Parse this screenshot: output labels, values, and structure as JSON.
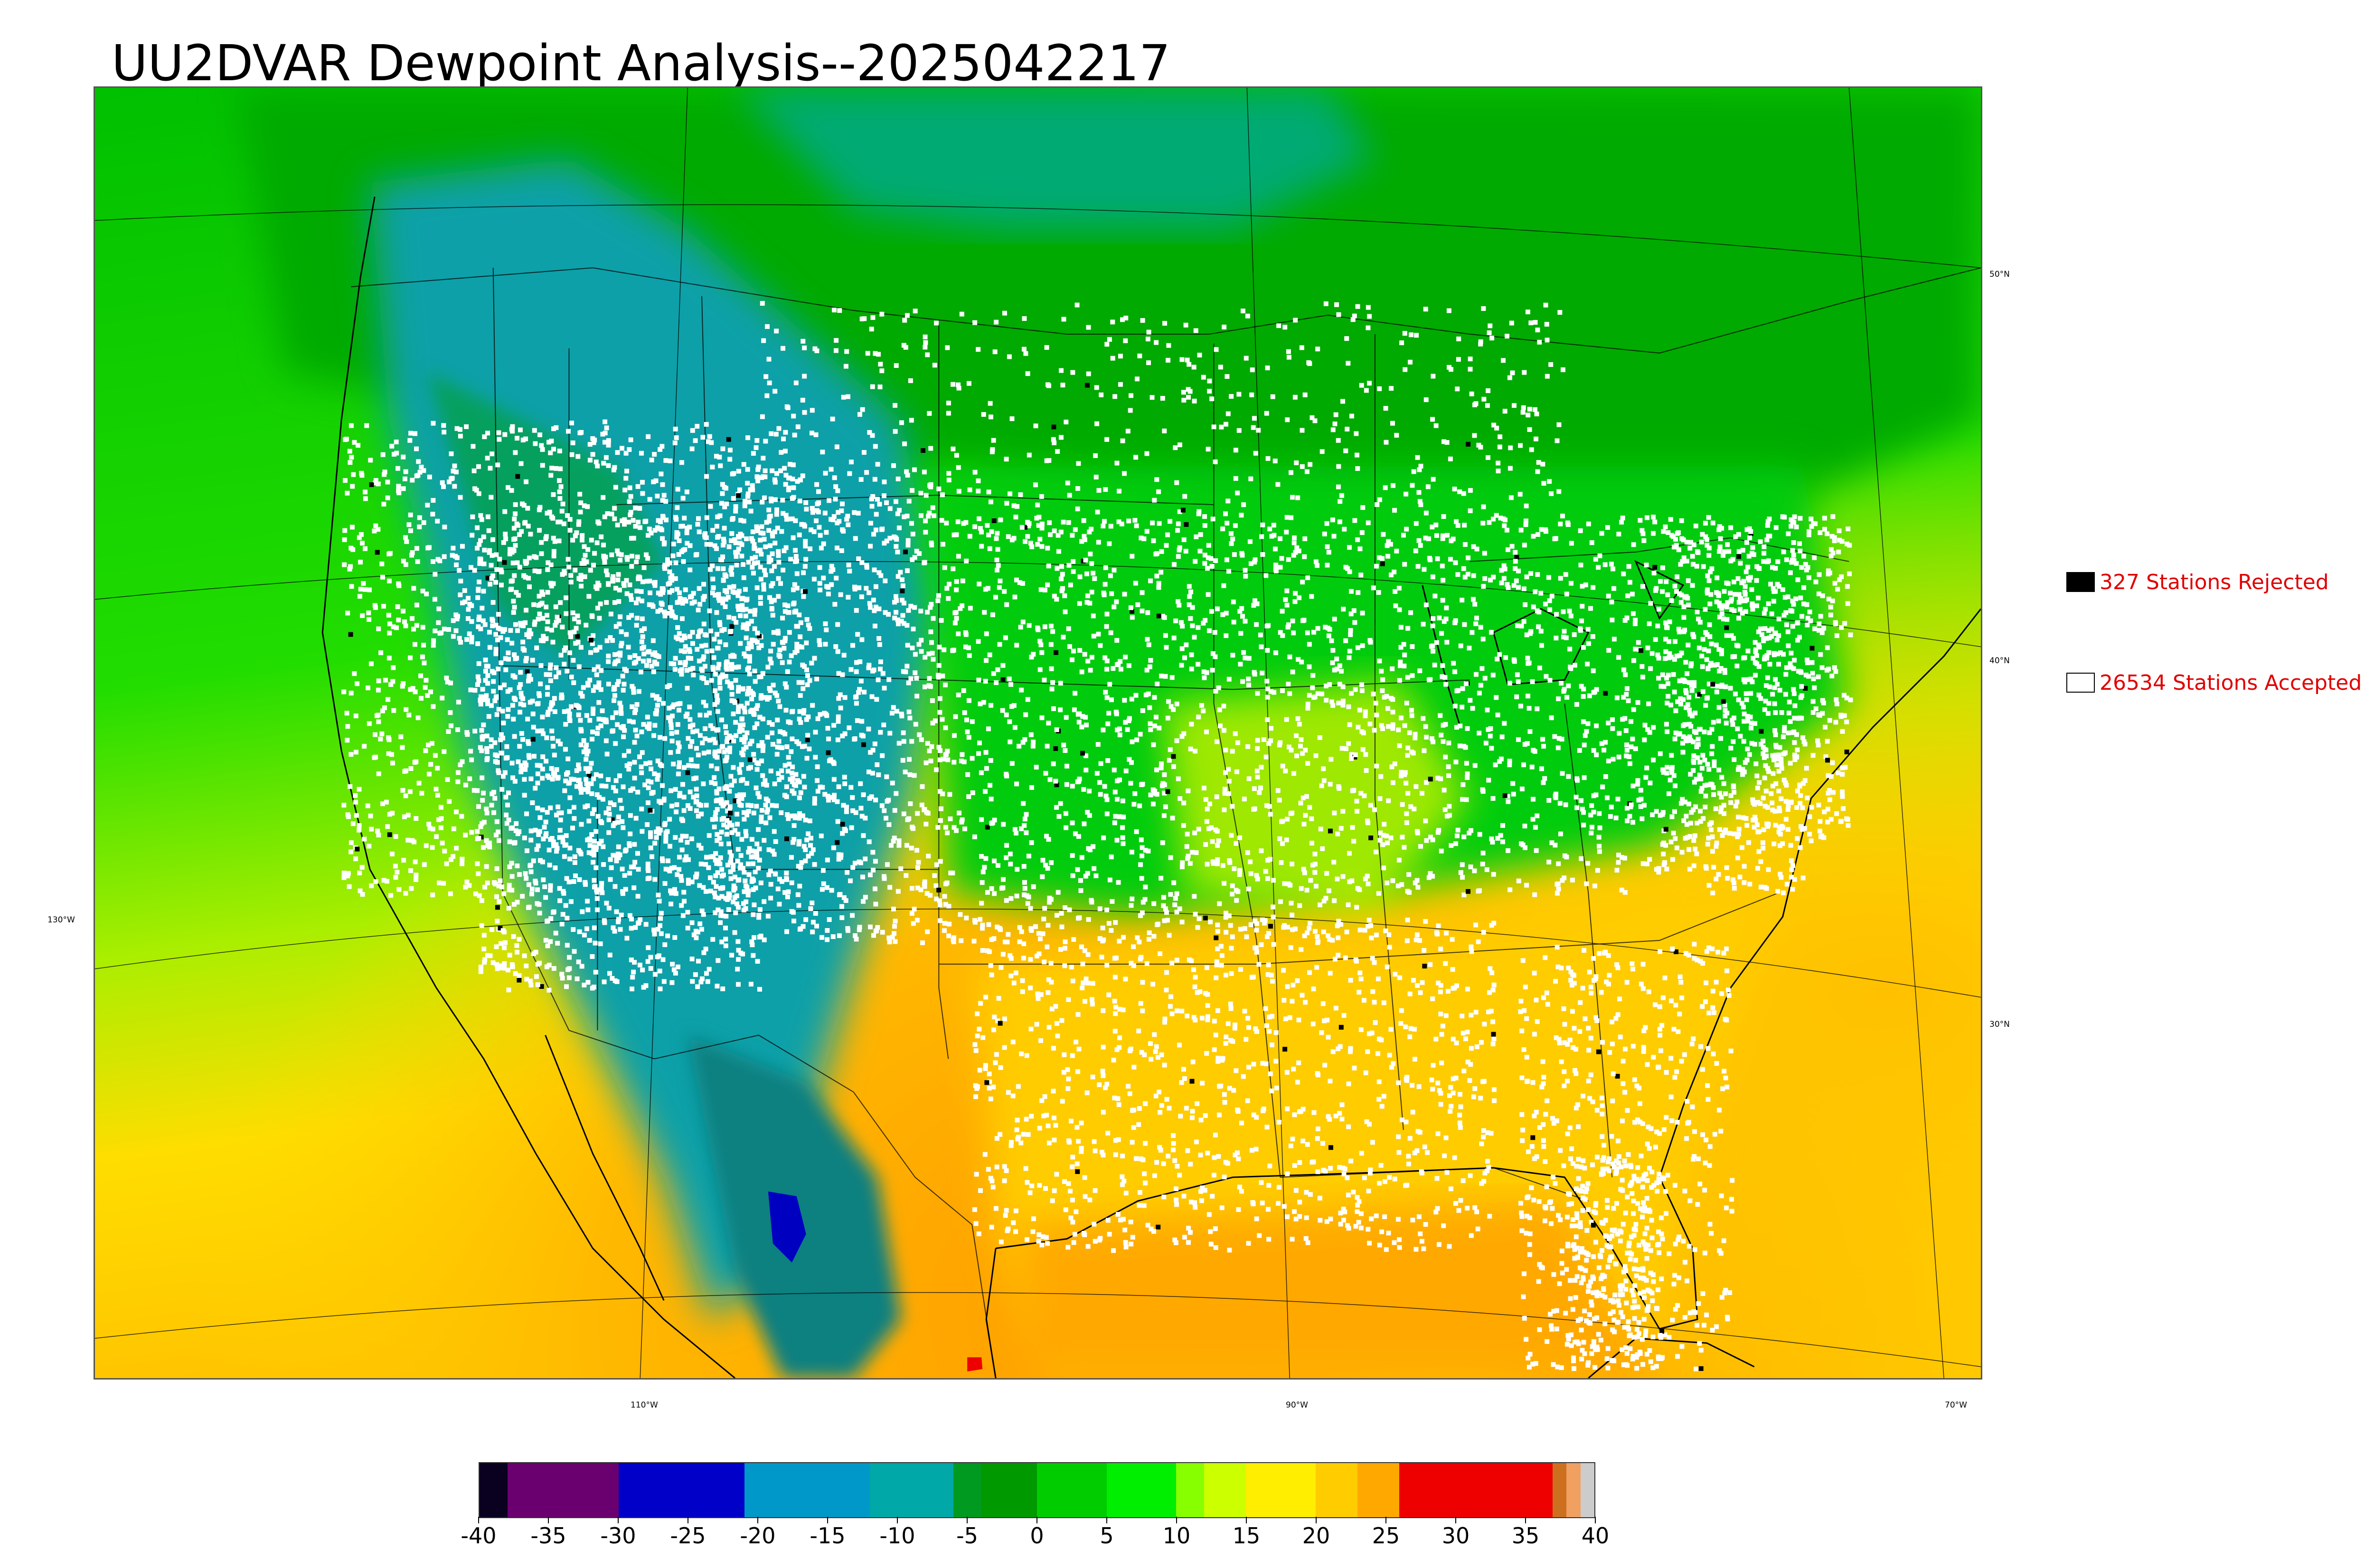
{
  "title": "UU2DVAR Dewpoint Analysis--2025042217",
  "graticule": {
    "lat_labels": [
      "50°N",
      "40°N",
      "30°N"
    ],
    "lon_labels": [
      "130°W",
      "110°W",
      "90°W",
      "70°W"
    ]
  },
  "legend": {
    "rejected": {
      "count_text": "327 Stations Rejected",
      "color": "#000000"
    },
    "accepted": {
      "count_text": "26534 Stations Accepted",
      "color": "#ffffff"
    }
  },
  "colorbar": {
    "ticks": [
      "-40",
      "-35",
      "-30",
      "-25",
      "-20",
      "-15",
      "-10",
      "-5",
      "0",
      "5",
      "10",
      "15",
      "20",
      "25",
      "30",
      "35",
      "40"
    ],
    "range": [
      -40,
      40
    ],
    "colors": {
      "-40": "#0a0020",
      "-38": "#6a0070",
      "-30": "#0000c8",
      "-21": "#0098c8",
      "-12": "#00a8a8",
      "-6": "#009a20",
      "-4": "#009900",
      "0": "#00cc00",
      "5": "#00ee00",
      "10": "#88ff00",
      "12": "#ccff00",
      "15": "#ffee00",
      "20": "#ffcc00",
      "23": "#ffa800",
      "26": "#ee0000",
      "37": "#cc7020",
      "38": "#f0a060",
      "39": "#cccccc"
    }
  },
  "colors": {
    "ocean_north": "#00c000",
    "ocean_south": "#ffa000",
    "station_accepted": "#ffffff",
    "station_rejected": "#000000",
    "label_red": "#e00000"
  }
}
